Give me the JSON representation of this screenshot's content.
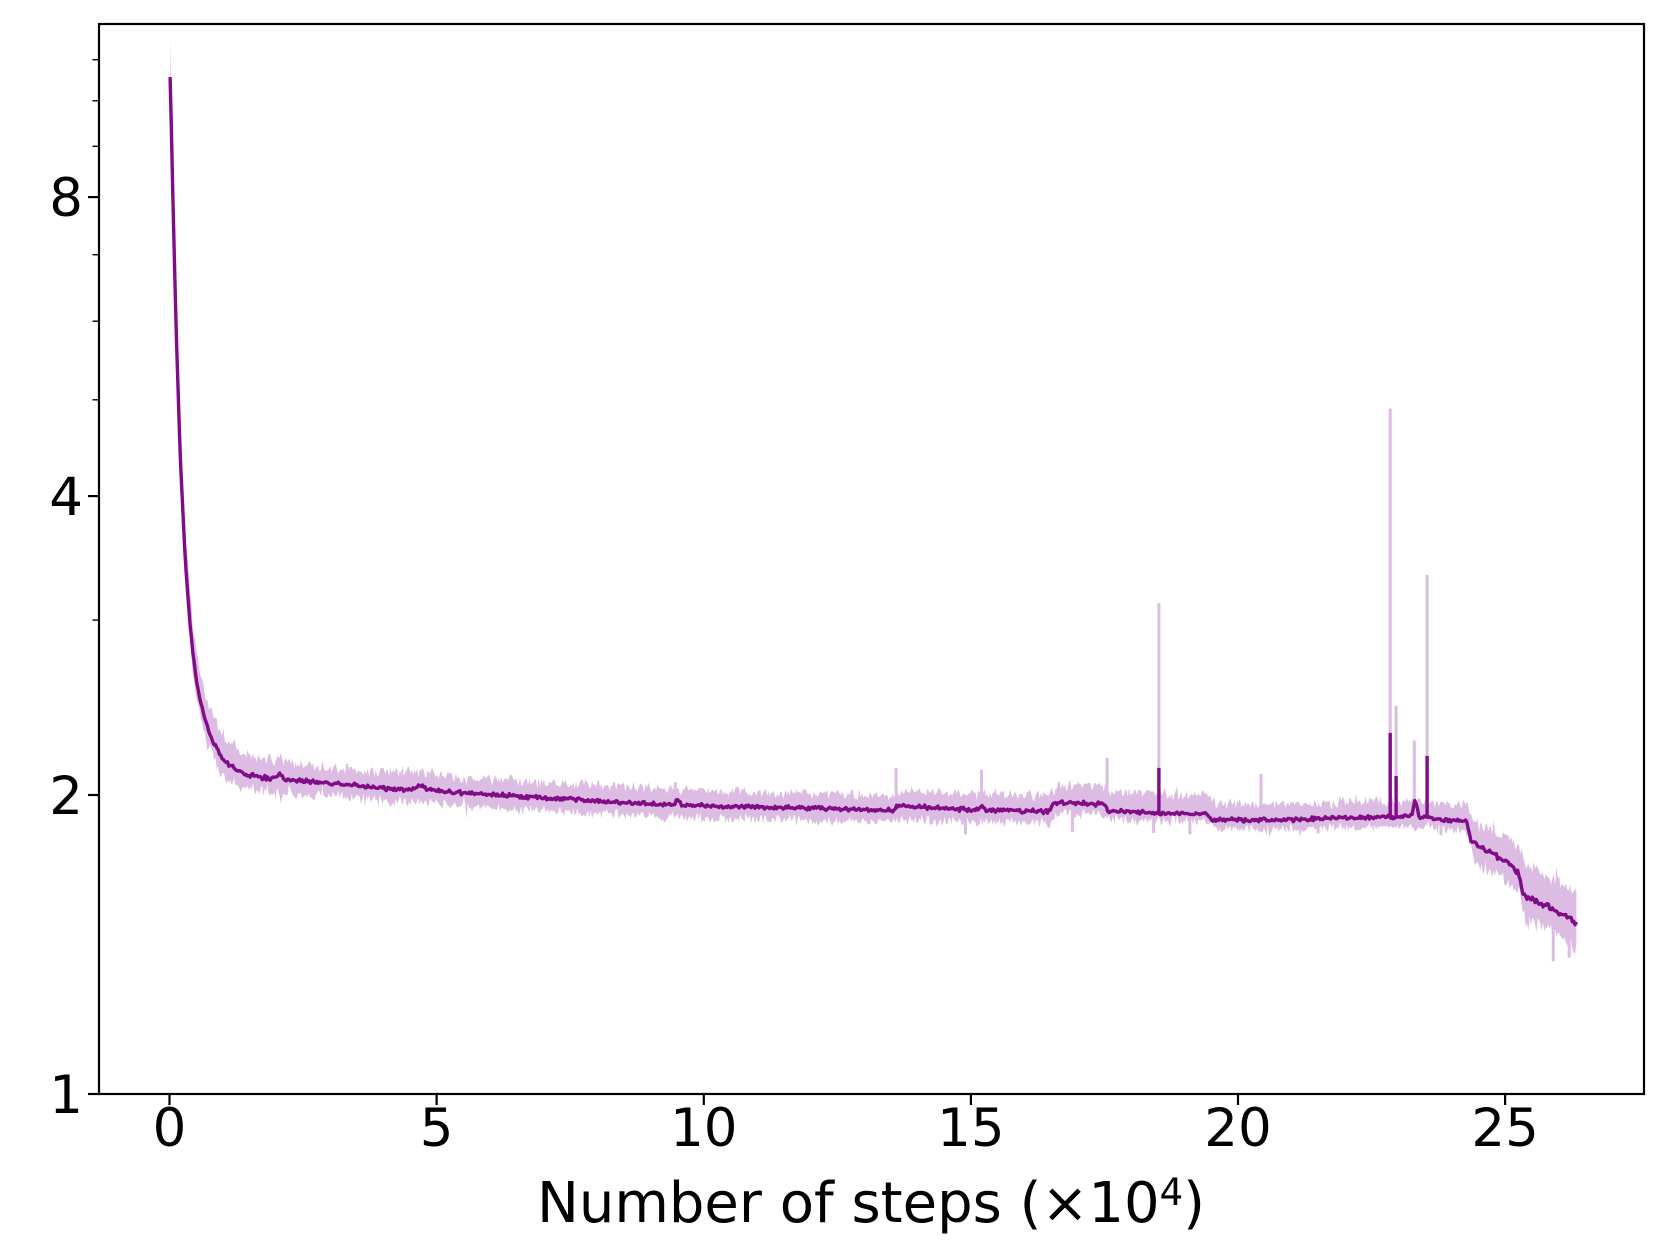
{
  "figure": {
    "background": "#ffffff"
  },
  "chart_data": {
    "type": "line",
    "title": "",
    "xlabel": "Number of steps (×10⁴)",
    "xlabel_parts": {
      "prefix": "Number of steps (×10",
      "exponent": "4",
      "suffix": ")"
    },
    "ylabel": "",
    "legend": null,
    "grid": false,
    "x_axis": {
      "ticks": [
        0,
        5,
        10,
        15,
        20,
        25
      ],
      "tick_labels": [
        "0",
        "5",
        "10",
        "15",
        "20",
        "25"
      ],
      "lim": [
        -1.32,
        27.6
      ]
    },
    "y_axis": {
      "scale": "log",
      "ticks": [
        1,
        2,
        4,
        8
      ],
      "tick_labels": [
        "1",
        "2",
        "4",
        "8"
      ],
      "minor_ticks": [
        3,
        5,
        6,
        7,
        9,
        10,
        11
      ],
      "lim": [
        1.0,
        11.95
      ]
    },
    "colors": {
      "line": "#800d87",
      "band": "#dcbce2",
      "axis": "#000000"
    },
    "series": [
      {
        "name": "loss-smoothed",
        "type": "line",
        "points": [
          [
            0.01,
            10.55
          ],
          [
            0.03,
            9.6
          ],
          [
            0.05,
            8.6
          ],
          [
            0.08,
            7.3
          ],
          [
            0.11,
            6.3
          ],
          [
            0.15,
            5.3
          ],
          [
            0.19,
            4.55
          ],
          [
            0.24,
            3.95
          ],
          [
            0.3,
            3.42
          ],
          [
            0.37,
            3.02
          ],
          [
            0.45,
            2.74
          ],
          [
            0.55,
            2.52
          ],
          [
            0.67,
            2.38
          ],
          [
            0.8,
            2.27
          ],
          [
            0.95,
            2.19
          ],
          [
            1.15,
            2.135
          ],
          [
            1.4,
            2.1
          ],
          [
            1.7,
            2.085
          ],
          [
            1.95,
            2.075
          ],
          [
            2.06,
            2.095
          ],
          [
            2.18,
            2.07
          ],
          [
            2.5,
            2.065
          ],
          [
            2.9,
            2.058
          ],
          [
            3.3,
            2.05
          ],
          [
            3.7,
            2.04
          ],
          [
            4.1,
            2.03
          ],
          [
            4.55,
            2.025
          ],
          [
            4.7,
            2.045
          ],
          [
            4.82,
            2.025
          ],
          [
            5.2,
            2.015
          ],
          [
            5.7,
            2.008
          ],
          [
            6.2,
            2.0
          ],
          [
            6.7,
            1.992
          ],
          [
            7.2,
            1.985
          ],
          [
            7.8,
            1.976
          ],
          [
            8.4,
            1.968
          ],
          [
            9.0,
            1.962
          ],
          [
            9.44,
            1.956
          ],
          [
            9.5,
            1.976
          ],
          [
            9.6,
            1.954
          ],
          [
            10.2,
            1.95
          ],
          [
            10.8,
            1.945
          ],
          [
            11.5,
            1.942
          ],
          [
            12.2,
            1.938
          ],
          [
            12.9,
            1.934
          ],
          [
            13.55,
            1.929
          ],
          [
            13.64,
            1.952
          ],
          [
            14.0,
            1.945
          ],
          [
            14.6,
            1.938
          ],
          [
            15.12,
            1.933
          ],
          [
            15.2,
            1.952
          ],
          [
            15.3,
            1.931
          ],
          [
            15.9,
            1.928
          ],
          [
            16.48,
            1.925
          ],
          [
            16.56,
            1.964
          ],
          [
            17.5,
            1.958
          ],
          [
            17.58,
            1.928
          ],
          [
            18.1,
            1.923
          ],
          [
            18.45,
            1.92
          ],
          [
            18.62,
            1.918
          ],
          [
            19.0,
            1.916
          ],
          [
            19.42,
            1.914
          ],
          [
            19.5,
            1.889
          ],
          [
            20.0,
            1.887
          ],
          [
            20.4,
            1.886
          ],
          [
            20.47,
            1.898
          ],
          [
            20.55,
            1.886
          ],
          [
            21.2,
            1.89
          ],
          [
            21.9,
            1.896
          ],
          [
            22.6,
            1.901
          ],
          [
            22.95,
            1.901
          ],
          [
            23.25,
            1.905
          ],
          [
            23.31,
            1.972
          ],
          [
            23.4,
            1.9
          ],
          [
            23.75,
            1.893
          ],
          [
            24.1,
            1.886
          ],
          [
            24.28,
            1.881
          ],
          [
            24.36,
            1.798
          ],
          [
            24.55,
            1.77
          ],
          [
            24.8,
            1.74
          ],
          [
            25.05,
            1.706
          ],
          [
            25.27,
            1.663
          ],
          [
            25.33,
            1.588
          ],
          [
            25.55,
            1.566
          ],
          [
            25.8,
            1.545
          ],
          [
            26.05,
            1.516
          ],
          [
            26.35,
            1.483
          ]
        ]
      },
      {
        "name": "loss-raw-range",
        "type": "band",
        "points": [
          [
            0.01,
            9.4,
            11.5
          ],
          [
            0.05,
            8.2,
            9.1
          ],
          [
            0.11,
            6.0,
            6.7
          ],
          [
            0.19,
            4.3,
            4.85
          ],
          [
            0.3,
            3.25,
            3.65
          ],
          [
            0.45,
            2.62,
            2.9
          ],
          [
            0.67,
            2.28,
            2.52
          ],
          [
            0.95,
            2.1,
            2.31
          ],
          [
            1.4,
            2.03,
            2.2
          ],
          [
            1.95,
            2.01,
            2.17
          ],
          [
            2.5,
            1.995,
            2.145
          ],
          [
            3.3,
            1.985,
            2.125
          ],
          [
            4.1,
            1.97,
            2.11
          ],
          [
            4.7,
            1.975,
            2.115
          ],
          [
            5.2,
            1.955,
            2.09
          ],
          [
            6.2,
            1.94,
            2.07
          ],
          [
            7.2,
            1.925,
            2.055
          ],
          [
            8.4,
            1.912,
            2.04
          ],
          [
            9.6,
            1.9,
            2.025
          ],
          [
            10.8,
            1.893,
            2.015
          ],
          [
            12.2,
            1.885,
            2.008
          ],
          [
            13.55,
            1.878,
            2.0
          ],
          [
            13.7,
            1.888,
            2.018
          ],
          [
            14.6,
            1.885,
            2.01
          ],
          [
            15.9,
            1.88,
            2.0
          ],
          [
            16.48,
            1.878,
            1.998
          ],
          [
            16.62,
            1.918,
            2.048
          ],
          [
            17.5,
            1.912,
            2.04
          ],
          [
            17.65,
            1.89,
            2.015
          ],
          [
            18.4,
            1.884,
            2.008
          ],
          [
            19.42,
            1.882,
            1.996
          ],
          [
            19.56,
            1.852,
            1.962
          ],
          [
            20.5,
            1.845,
            1.955
          ],
          [
            21.9,
            1.855,
            1.966
          ],
          [
            23.3,
            1.856,
            1.97
          ],
          [
            24.0,
            1.848,
            1.958
          ],
          [
            24.28,
            1.843,
            1.952
          ],
          [
            24.42,
            1.705,
            1.878
          ],
          [
            24.8,
            1.668,
            1.845
          ],
          [
            25.27,
            1.6,
            1.78
          ],
          [
            25.4,
            1.492,
            1.69
          ],
          [
            25.8,
            1.465,
            1.658
          ],
          [
            26.1,
            1.432,
            1.622
          ],
          [
            26.35,
            1.405,
            1.588
          ]
        ]
      }
    ],
    "spikes": {
      "light_up": [
        [
          9.47,
          2.06
        ],
        [
          13.6,
          2.13
        ],
        [
          15.2,
          2.12
        ],
        [
          17.55,
          2.18
        ],
        [
          18.52,
          3.12
        ],
        [
          20.43,
          2.1
        ],
        [
          22.85,
          4.9
        ],
        [
          22.96,
          2.46
        ],
        [
          23.3,
          2.27
        ],
        [
          23.54,
          3.33
        ]
      ],
      "light_down": [
        [
          14.9,
          1.826
        ],
        [
          16.9,
          1.836
        ],
        [
          18.42,
          1.832
        ],
        [
          19.1,
          1.826
        ],
        [
          21.5,
          1.83
        ],
        [
          23.8,
          1.822
        ],
        [
          25.9,
          1.36
        ],
        [
          26.2,
          1.372
        ]
      ],
      "dark_up": [
        [
          18.52,
          2.13
        ],
        [
          22.85,
          2.31
        ],
        [
          22.96,
          2.09
        ],
        [
          23.54,
          2.19
        ]
      ]
    }
  }
}
